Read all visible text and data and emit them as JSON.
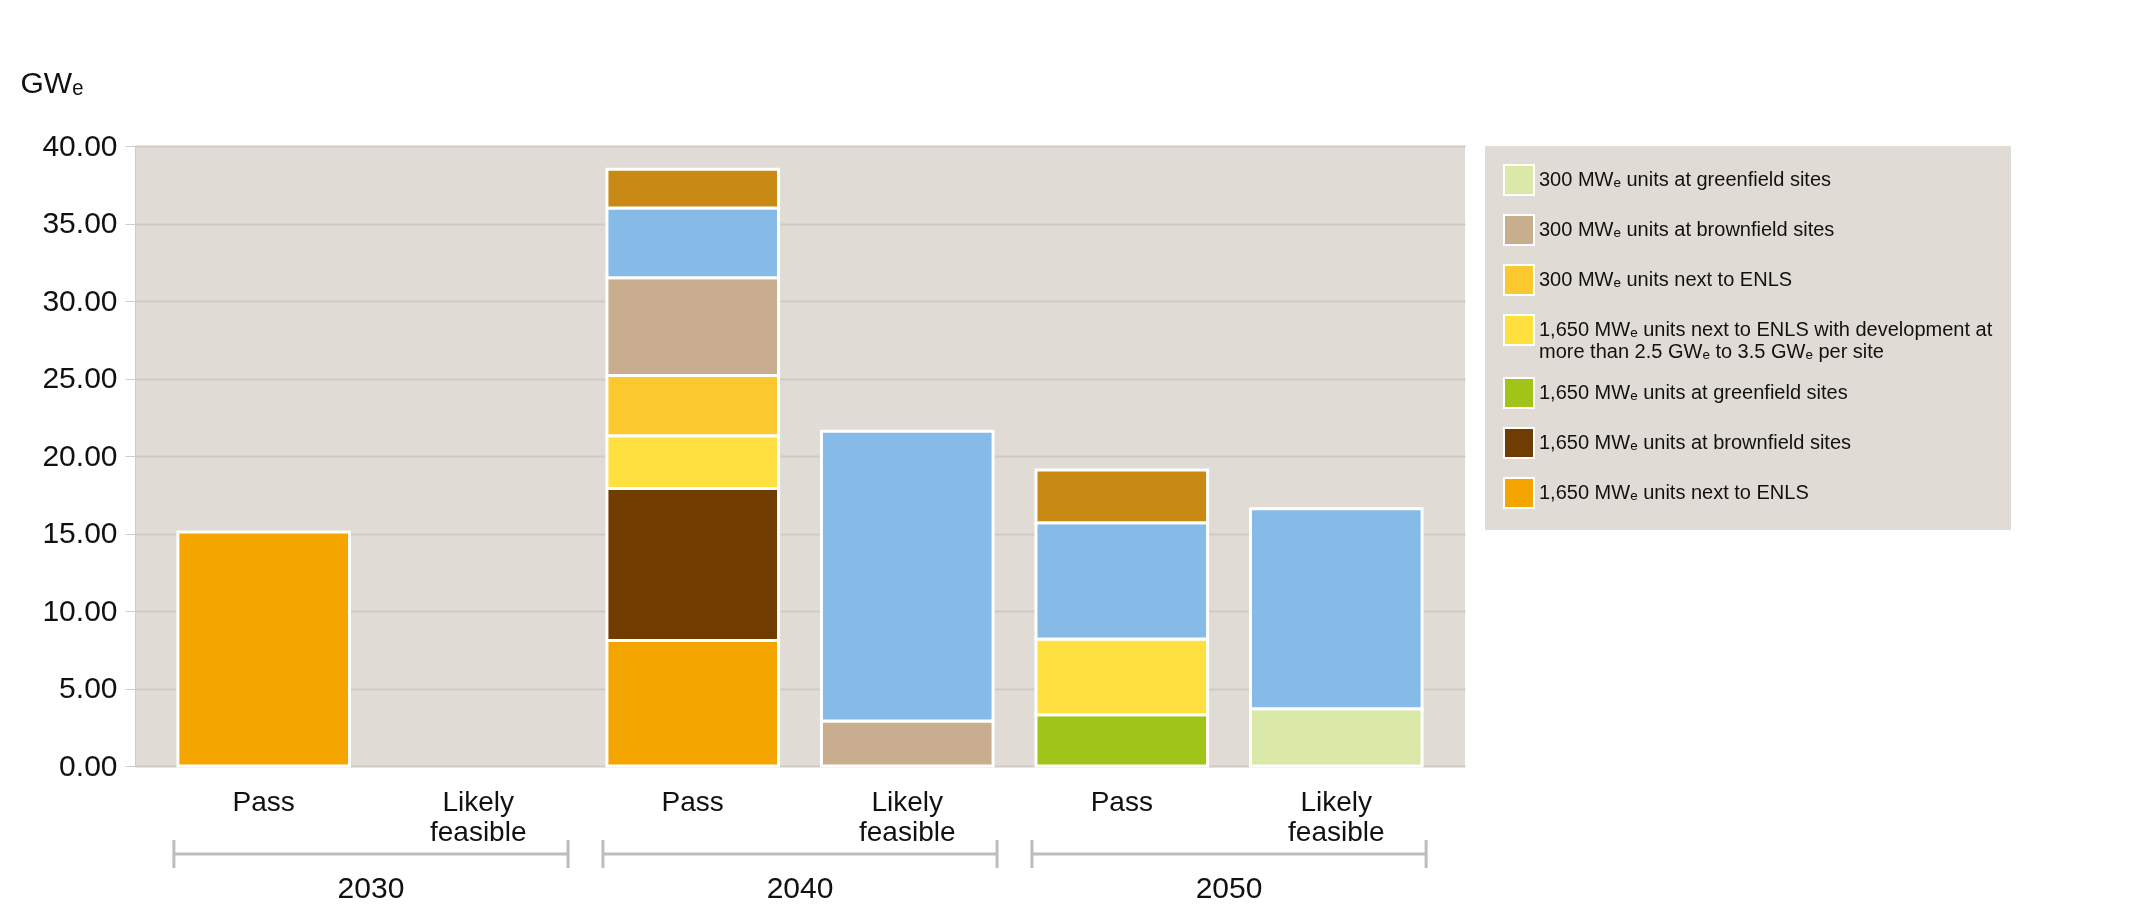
{
  "chart_data": {
    "type": "bar",
    "stacked": true,
    "ylabel": "GWₑ",
    "categories": [
      "Pass",
      "Likely feasible",
      "Pass",
      "Likely feasible",
      "Pass",
      "Likely feasible"
    ],
    "series": [
      {
        "name": "1,650 MWₑ units next to ENLS",
        "color": "#f5a500",
        "values": [
          15.1,
          null,
          8.1,
          null,
          null,
          null
        ]
      },
      {
        "name": "1,650 MWₑ units at brownfield sites",
        "color": "#703c00",
        "values": [
          null,
          null,
          9.8,
          null,
          null,
          null
        ]
      },
      {
        "name": "1,650 MWₑ units at greenfield sites",
        "color": "#a0c418",
        "values": [
          null,
          null,
          null,
          null,
          3.3,
          null
        ]
      },
      {
        "name": "1,650 MWₑ units next to ENLS with development at more than 2.5 GWₑ to 3.5 GWₑ per site",
        "color": "#ffe040",
        "values": [
          null,
          null,
          3.4,
          null,
          4.9,
          null
        ]
      },
      {
        "name": "300 MWₑ units next to ENLS",
        "color": "#fcc830",
        "values": [
          null,
          null,
          3.9,
          null,
          null,
          null
        ]
      },
      {
        "name": "300 MWₑ units at brownfield sites",
        "color": "#c8ad8f",
        "values": [
          null,
          null,
          6.3,
          2.9,
          null,
          null
        ]
      },
      {
        "name": "300 MWₑ units at greenfield sites",
        "color": "#dbe9a8",
        "values": [
          null,
          null,
          null,
          null,
          null,
          3.7
        ]
      },
      {
        "color": "#85bbe6",
        "values": [
          null,
          null,
          4.5,
          18.7,
          7.5,
          12.9
        ]
      },
      {
        "color": "#c88a14",
        "values": [
          null,
          null,
          2.5,
          null,
          3.4,
          null
        ]
      }
    ],
    "ylim": [
      0,
      40
    ],
    "yticks": [
      {
        "value": 0,
        "label": "0.00"
      },
      {
        "value": 5,
        "label": "5.00"
      },
      {
        "value": 10,
        "label": "10.00"
      },
      {
        "value": 15,
        "label": "15.00"
      },
      {
        "value": 20,
        "label": "20.00"
      },
      {
        "value": 25,
        "label": "25.00"
      },
      {
        "value": 30,
        "label": "30.00"
      },
      {
        "value": 35,
        "label": "35.00"
      },
      {
        "value": 40,
        "label": "40.00"
      }
    ],
    "grid": "y",
    "legend": "top right",
    "annotations": [
      "2030",
      "2040",
      "2050"
    ]
  }
}
